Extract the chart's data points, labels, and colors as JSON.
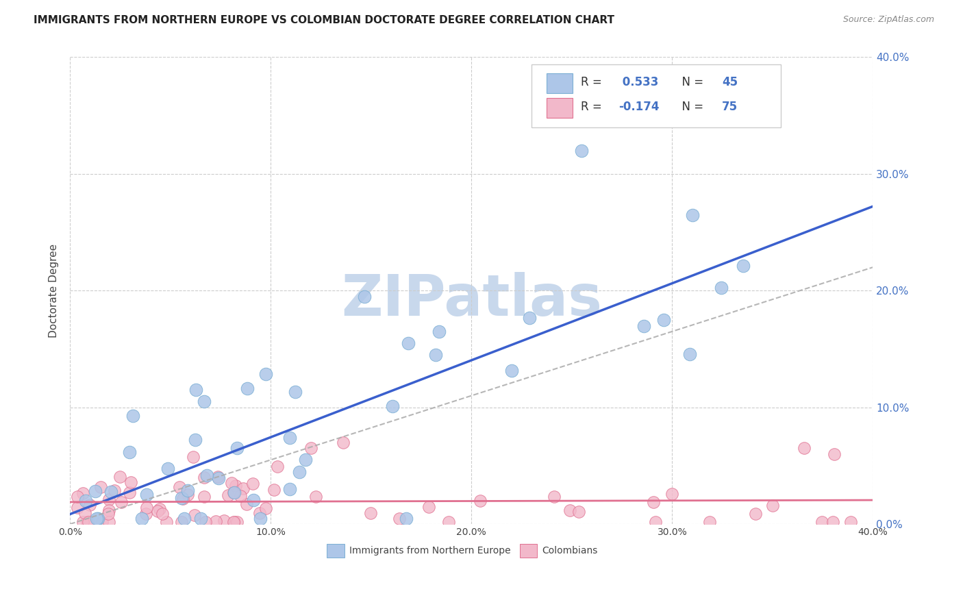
{
  "title": "IMMIGRANTS FROM NORTHERN EUROPE VS COLOMBIAN DOCTORATE DEGREE CORRELATION CHART",
  "source": "Source: ZipAtlas.com",
  "ylabel": "Doctorate Degree",
  "xmin": 0.0,
  "xmax": 0.4,
  "ymin": 0.0,
  "ymax": 0.4,
  "ytick_labels": [
    "0.0%",
    "10.0%",
    "20.0%",
    "30.0%",
    "40.0%"
  ],
  "ytick_values": [
    0.0,
    0.1,
    0.2,
    0.3,
    0.4
  ],
  "xtick_labels": [
    "0.0%",
    "10.0%",
    "20.0%",
    "30.0%",
    "40.0%"
  ],
  "xtick_values": [
    0.0,
    0.1,
    0.2,
    0.3,
    0.4
  ],
  "blue_color": "#adc6e8",
  "blue_edge": "#7bafd4",
  "pink_color": "#f2b8ca",
  "pink_edge": "#e07090",
  "blue_line_color": "#3a5fcd",
  "pink_line_color": "#e07090",
  "legend_blue_label": "Immigrants from Northern Europe",
  "legend_pink_label": "Colombians",
  "R_blue": 0.533,
  "N_blue": 45,
  "R_pink": -0.174,
  "N_pink": 75,
  "label_color_blue": "#4472c4",
  "label_color_pink": "#e07090",
  "background_color": "#ffffff",
  "grid_color": "#cccccc",
  "watermark_text": "ZIPatlas",
  "watermark_color": "#c8d8ec",
  "title_fontsize": 11,
  "right_tick_color": "#4472c4"
}
